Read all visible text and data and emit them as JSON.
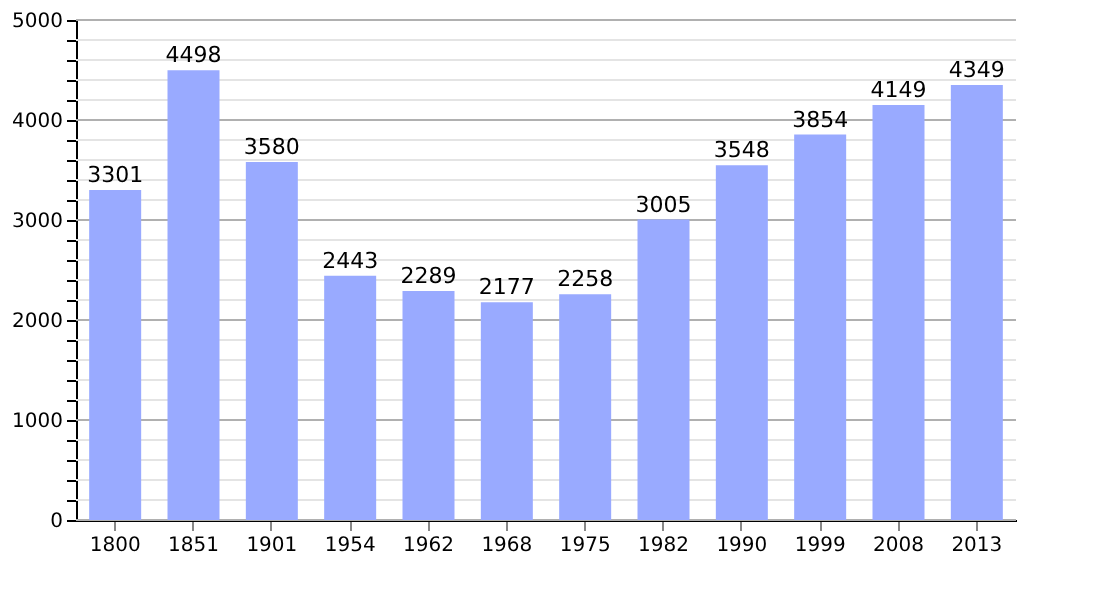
{
  "chart_data": {
    "type": "bar",
    "categories": [
      "1800",
      "1851",
      "1901",
      "1954",
      "1962",
      "1968",
      "1975",
      "1982",
      "1990",
      "1999",
      "2008",
      "2013"
    ],
    "values": [
      3301,
      4498,
      3580,
      2443,
      2289,
      2177,
      2258,
      3005,
      3548,
      3854,
      4149,
      4349
    ],
    "color": "#99aaff",
    "ylim": [
      0,
      5000
    ],
    "yticks": [
      0,
      {
        "value": 200,
        "label": null
      },
      {
        "value": 400,
        "label": null
      },
      {
        "value": 600,
        "label": null
      },
      {
        "value": 800,
        "label": null
      },
      1000,
      {
        "value": 1200,
        "label": null
      },
      {
        "value": 1400,
        "label": null
      },
      {
        "value": 1600,
        "label": null
      },
      {
        "value": 1800,
        "label": null
      },
      2000,
      {
        "value": 2200,
        "label": null
      },
      {
        "value": 2400,
        "label": null
      },
      {
        "value": 2600,
        "label": null
      },
      {
        "value": 2800,
        "label": null
      },
      3000,
      {
        "value": 3200,
        "label": null
      },
      {
        "value": 3400,
        "label": null
      },
      {
        "value": 3600,
        "label": null
      },
      {
        "value": 3800,
        "label": null
      },
      4000,
      {
        "value": 4200,
        "label": null
      },
      {
        "value": 4400,
        "label": null
      },
      {
        "value": 4600,
        "label": null
      },
      {
        "value": 4800,
        "label": null
      },
      5000
    ],
    "grid": "y",
    "data_labels": true
  }
}
